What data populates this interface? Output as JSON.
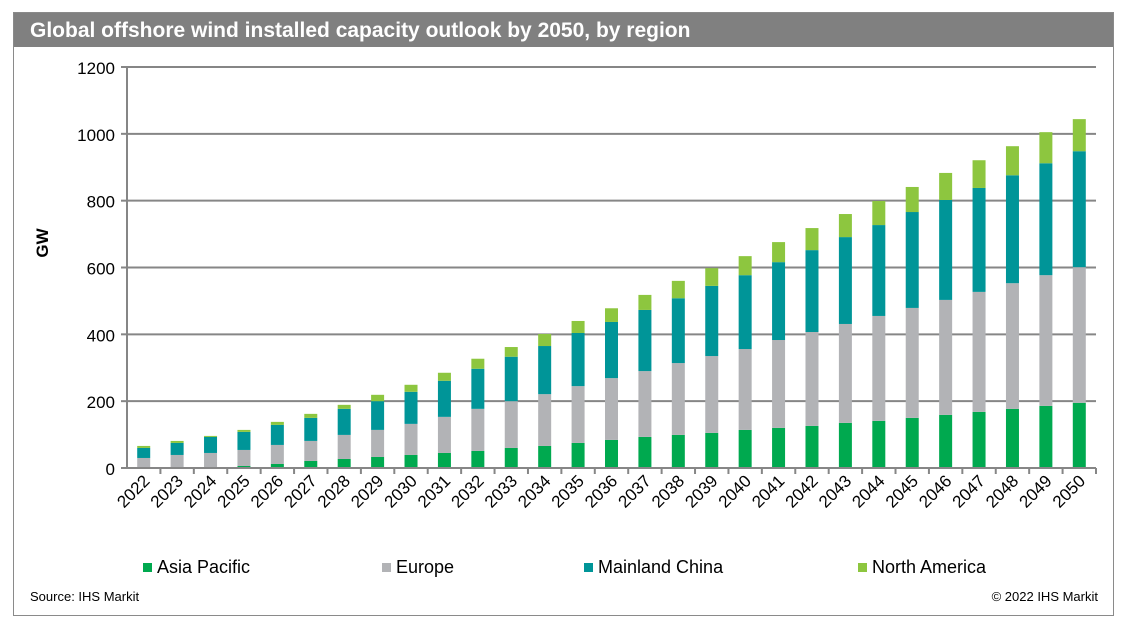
{
  "chart_data": {
    "type": "bar",
    "stacked": true,
    "title": "Global offshore wind installed capacity outlook by 2050, by region",
    "xlabel": "",
    "ylabel": "GW",
    "ylim": [
      0,
      1200
    ],
    "yticks": [
      "0",
      "200",
      "400",
      "600",
      "800",
      "1000",
      "1200"
    ],
    "grid": true,
    "legend_position": "bottom",
    "categories": [
      "2022",
      "2023",
      "2024",
      "2025",
      "2026",
      "2027",
      "2028",
      "2029",
      "2030",
      "2031",
      "2032",
      "2033",
      "2034",
      "2035",
      "2036",
      "2037",
      "2038",
      "2039",
      "2040",
      "2041",
      "2042",
      "2043",
      "2044",
      "2045",
      "2046",
      "2047",
      "2048",
      "2049",
      "2050"
    ],
    "series": [
      {
        "name": "Asia Pacific",
        "color": "#00a94f",
        "values": [
          0,
          0,
          2,
          6,
          12,
          21,
          27,
          33,
          39,
          45,
          51,
          60,
          66,
          75,
          84,
          93,
          99,
          105,
          114,
          120,
          126,
          135,
          141,
          150,
          159,
          168,
          177,
          186,
          195
        ]
      },
      {
        "name": "Europe",
        "color": "#b2b3b6",
        "values": [
          30,
          39,
          43,
          48,
          57,
          60,
          72,
          81,
          93,
          108,
          126,
          140,
          155,
          170,
          185,
          197,
          215,
          230,
          242,
          263,
          281,
          296,
          314,
          329,
          344,
          359,
          376,
          391,
          406
        ]
      },
      {
        "name": "Mainland China",
        "color": "#009598",
        "values": [
          30,
          36,
          48,
          54,
          60,
          69,
          78,
          86,
          96,
          108,
          120,
          133,
          144,
          159,
          168,
          183,
          194,
          210,
          221,
          233,
          245,
          260,
          272,
          287,
          299,
          311,
          323,
          335,
          347
        ]
      },
      {
        "name": "North America",
        "color": "#8dc63f",
        "values": [
          6,
          6,
          3,
          6,
          9,
          12,
          12,
          19,
          21,
          24,
          30,
          29,
          36,
          36,
          41,
          45,
          52,
          53,
          57,
          60,
          66,
          69,
          72,
          75,
          81,
          83,
          87,
          93,
          96
        ]
      }
    ]
  },
  "footer": {
    "source": "Source: IHS Markit",
    "copyright": "© 2022 IHS Markit"
  }
}
